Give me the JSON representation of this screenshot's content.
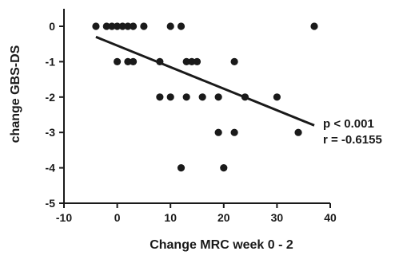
{
  "chart_data": {
    "type": "scatter",
    "xlabel": "Change MRC week 0 - 2",
    "ylabel": "change GBS-DS",
    "xlim": [
      -10,
      40
    ],
    "ylim": [
      -5,
      0
    ],
    "xticks": [
      -10,
      0,
      10,
      20,
      30,
      40
    ],
    "yticks": [
      0,
      -1,
      -2,
      -3,
      -4,
      -5
    ],
    "xtick_labels": [
      "-10",
      "0",
      "10",
      "20",
      "30",
      "40"
    ],
    "ytick_labels": [
      "0",
      "-1",
      "-2",
      "-3",
      "-4",
      "-5"
    ],
    "grid": false,
    "points": [
      {
        "x": -4,
        "y": 0
      },
      {
        "x": -2,
        "y": 0
      },
      {
        "x": -1,
        "y": 0
      },
      {
        "x": 0,
        "y": 0
      },
      {
        "x": 1,
        "y": 0
      },
      {
        "x": 2,
        "y": 0
      },
      {
        "x": 3,
        "y": 0
      },
      {
        "x": 5,
        "y": 0
      },
      {
        "x": 10,
        "y": 0
      },
      {
        "x": 12,
        "y": 0
      },
      {
        "x": 37,
        "y": 0
      },
      {
        "x": 0,
        "y": -1
      },
      {
        "x": 2,
        "y": -1
      },
      {
        "x": 3,
        "y": -1
      },
      {
        "x": 8,
        "y": -1
      },
      {
        "x": 13,
        "y": -1
      },
      {
        "x": 14,
        "y": -1
      },
      {
        "x": 15,
        "y": -1
      },
      {
        "x": 22,
        "y": -1
      },
      {
        "x": 8,
        "y": -2
      },
      {
        "x": 10,
        "y": -2
      },
      {
        "x": 13,
        "y": -2
      },
      {
        "x": 16,
        "y": -2
      },
      {
        "x": 19,
        "y": -2
      },
      {
        "x": 24,
        "y": -2
      },
      {
        "x": 30,
        "y": -2
      },
      {
        "x": 19,
        "y": -3
      },
      {
        "x": 22,
        "y": -3
      },
      {
        "x": 34,
        "y": -3
      },
      {
        "x": 12,
        "y": -4
      },
      {
        "x": 20,
        "y": -4
      }
    ],
    "regression_line": {
      "x": [
        -4,
        37
      ],
      "y": [
        -0.3,
        -2.8
      ]
    },
    "annotations": [
      "p < 0.001",
      "r = -0.6155"
    ]
  }
}
